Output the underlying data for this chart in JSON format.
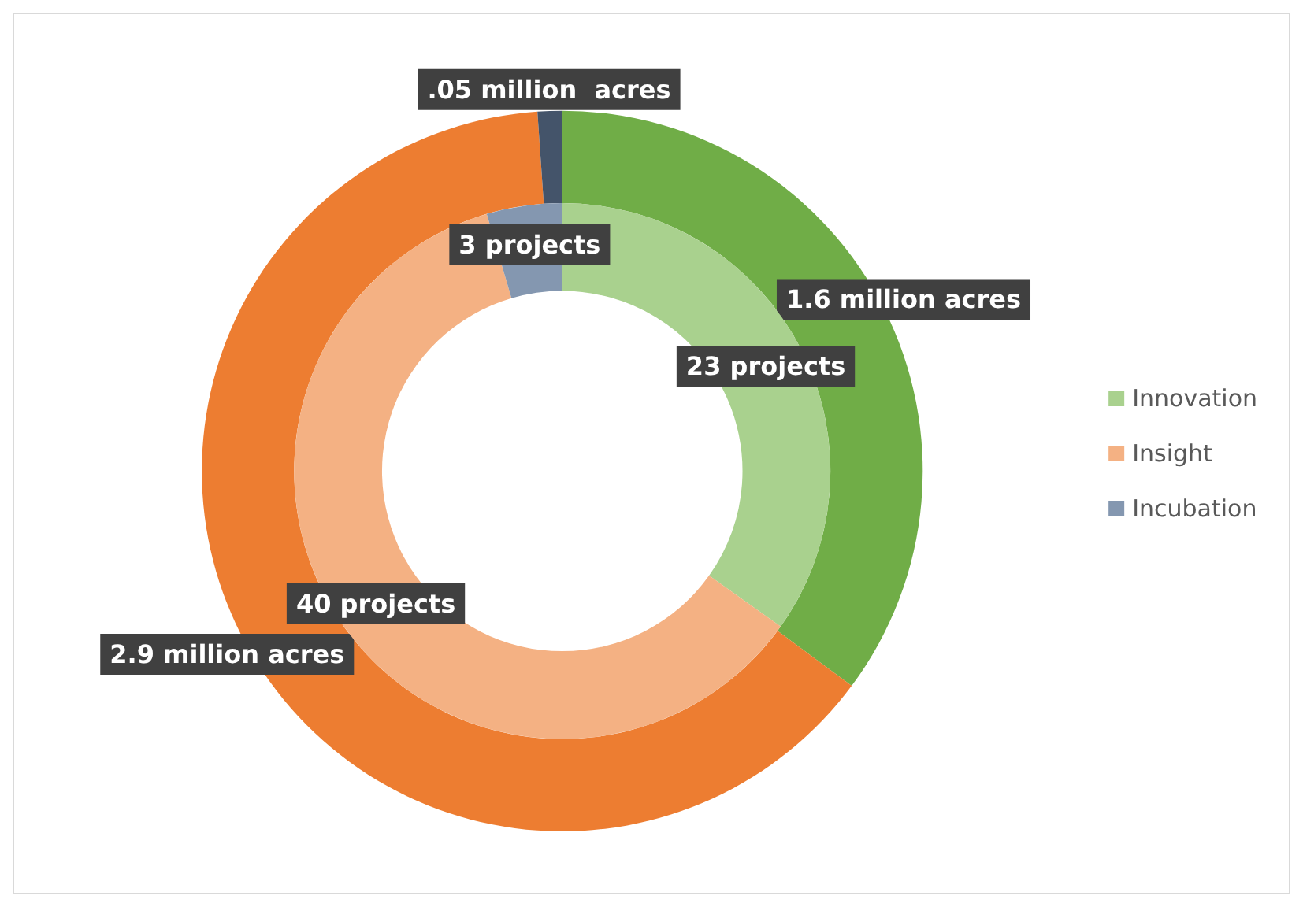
{
  "chart_data": {
    "type": "donut",
    "categories": [
      "Innovation",
      "Insight",
      "Incubation"
    ],
    "legend": "right",
    "series": [
      {
        "values": [
          23,
          40,
          3
        ],
        "colors": [
          "#a9d18e",
          "#f4b183",
          "#8497b0"
        ],
        "value_labels": [
          "23 projects",
          "40 projects",
          "3 projects"
        ]
      },
      {
        "values": [
          1.6,
          2.9,
          0.05
        ],
        "colors": [
          "#70ad47",
          "#ed7d31",
          "#44546a"
        ],
        "value_labels": [
          "1.6 million acres",
          "2.9 million acres",
          ".05 million  acres"
        ]
      }
    ]
  }
}
